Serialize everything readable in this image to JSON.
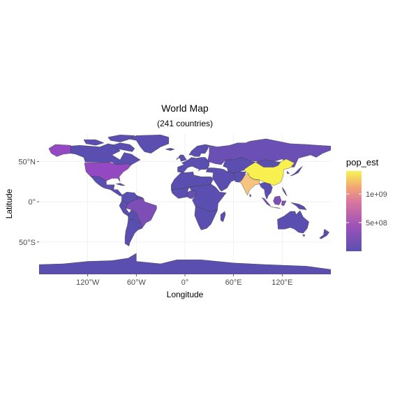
{
  "map": {
    "title": "World Map",
    "subtitle": "(241 countries)",
    "x_label": "Longitude",
    "y_label": "Latitude",
    "x_ticks": [
      "120°W",
      "60°W",
      "0°",
      "60°E",
      "120°E"
    ],
    "y_ticks": [
      "50°N",
      "0°",
      "50°S"
    ],
    "x_tick_values": [
      -120,
      -60,
      0,
      60,
      120
    ],
    "y_tick_values": [
      50,
      0,
      -50
    ],
    "xlim": [
      -180,
      180
    ],
    "ylim": [
      -90,
      84
    ]
  },
  "legend": {
    "title": "pop_est",
    "labels": [
      "1e+09",
      "5e+08"
    ],
    "label_values": [
      1000000000,
      500000000
    ],
    "range": [
      0,
      1400000000
    ],
    "colors": {
      "low": "#5a4fb0",
      "mid_low": "#9a52b8",
      "mid": "#d773a0",
      "mid_high": "#f4a673",
      "high": "#f6f452"
    }
  },
  "colors": {
    "default_fill": "#5a4fb0",
    "border": "#3a3a3a",
    "grid": "#ebebeb",
    "usa": "#9448c2",
    "china": "#f8f04e",
    "india": "#f5c47d",
    "indonesia": "#7f4fb6",
    "brazil": "#7d4eb6",
    "russia": "#6b4fb4",
    "nigeria": "#664fb3"
  },
  "chart_data": {
    "type": "choropleth",
    "title": "World Map",
    "subtitle": "(241 countries)",
    "xlabel": "Longitude",
    "ylabel": "Latitude",
    "variable": "pop_est",
    "highlighted": [
      {
        "name": "China",
        "value": 1380000000
      },
      {
        "name": "India",
        "value": 1280000000
      },
      {
        "name": "United States",
        "value": 325000000
      },
      {
        "name": "Indonesia",
        "value": 260000000
      },
      {
        "name": "Brazil",
        "value": 207000000
      },
      {
        "name": "Russia",
        "value": 142000000
      }
    ]
  }
}
